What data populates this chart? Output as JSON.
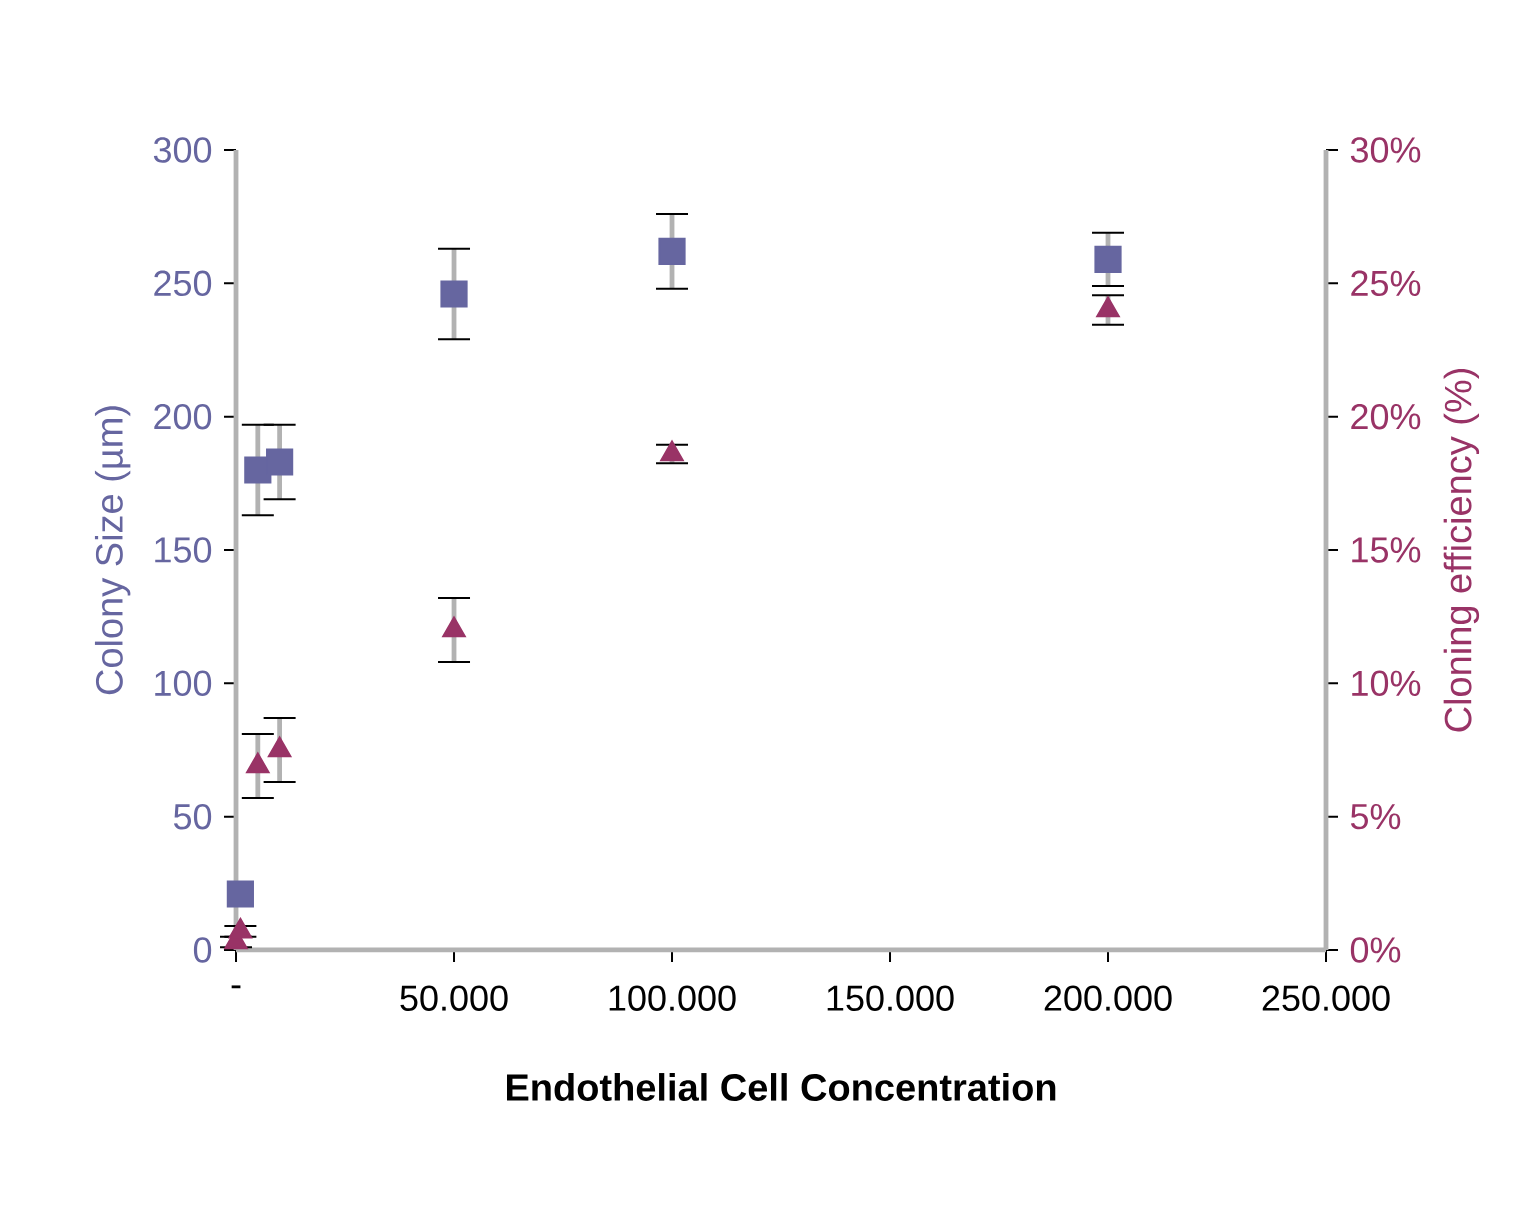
{
  "chart_data": {
    "type": "scatter",
    "xlabel": "Endothelial Cell Concentration",
    "ylabel": "Colony Size (µm)",
    "y2label": "Cloning efficiency (%)",
    "xlim": [
      0,
      250000
    ],
    "xticks": [
      {
        "value": 0,
        "label": "-"
      },
      {
        "value": 50000,
        "label": "50.000"
      },
      {
        "value": 100000,
        "label": "100.000"
      },
      {
        "value": 150000,
        "label": "150.000"
      },
      {
        "value": 200000,
        "label": "200.000"
      },
      {
        "value": 250000,
        "label": "250.000"
      }
    ],
    "ylim": [
      0,
      300
    ],
    "yticks": [
      0,
      50,
      100,
      150,
      200,
      250,
      300
    ],
    "y2lim": [
      0,
      30
    ],
    "y2ticks": [
      {
        "value": 0,
        "label": "0%"
      },
      {
        "value": 5,
        "label": "5%"
      },
      {
        "value": 10,
        "label": "10%"
      },
      {
        "value": 15,
        "label": "15%"
      },
      {
        "value": 20,
        "label": "20%"
      },
      {
        "value": 25,
        "label": "25%"
      },
      {
        "value": 30,
        "label": "30%"
      }
    ],
    "series": [
      {
        "color": "#6666a0",
        "marker": "square",
        "x": [
          1000,
          5000,
          10000,
          50000,
          100000,
          200000
        ],
        "values": [
          21,
          180,
          183,
          246,
          262,
          259
        ],
        "errors": [
          null,
          17,
          14,
          17,
          14,
          10
        ]
      },
      {
        "color": "#993366",
        "marker": "triangle",
        "axis": "y2",
        "x": [
          0,
          1000,
          5000,
          10000,
          50000,
          100000,
          200000
        ],
        "values": [
          0.3,
          0.7,
          6.9,
          7.5,
          12,
          18.6,
          24
        ],
        "errors": [
          0.2,
          0.2,
          1.2,
          1.2,
          1.2,
          0.35,
          0.55
        ]
      }
    ],
    "grid": false
  }
}
